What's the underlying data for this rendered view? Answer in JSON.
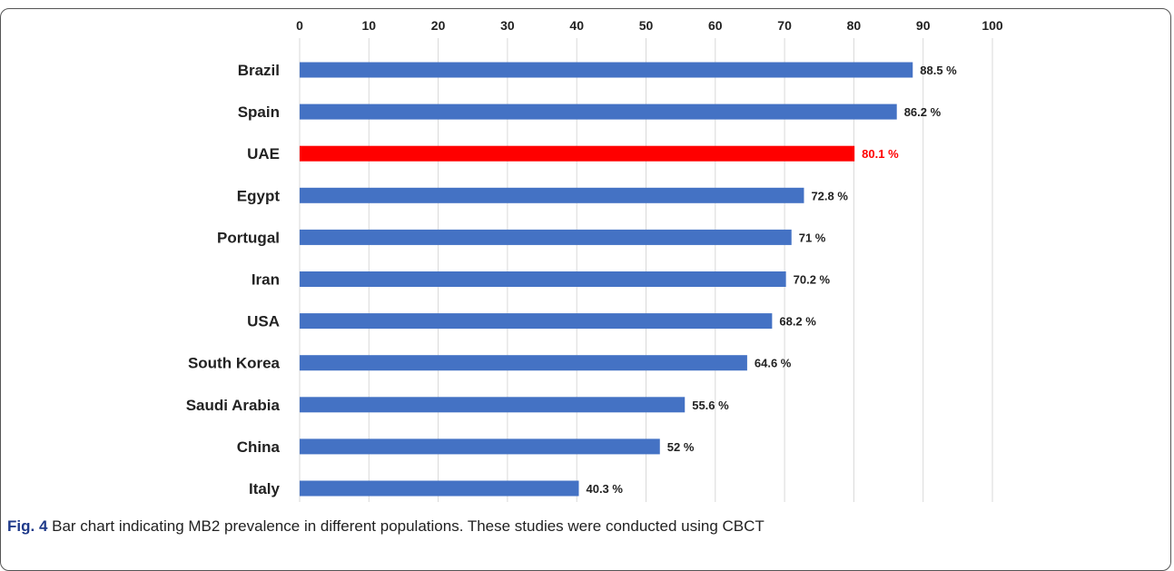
{
  "chart_data": {
    "type": "bar",
    "orientation": "horizontal",
    "x_ticks": [
      "0",
      "10",
      "20",
      "30",
      "40",
      "50",
      "60",
      "70",
      "80",
      "90",
      "100"
    ],
    "xlim": [
      0,
      100
    ],
    "grid": "vertical",
    "axis_position": "top",
    "categories": [
      "Brazil",
      "Spain",
      "UAE",
      "Egypt",
      "Portugal",
      "Iran",
      "USA",
      "South Korea",
      "Saudi Arabia",
      "China",
      "Italy"
    ],
    "values": [
      88.5,
      86.2,
      80.1,
      72.8,
      71,
      70.2,
      68.2,
      64.6,
      55.6,
      52,
      40.3
    ],
    "value_labels": [
      "88.5",
      "86.2",
      "80.1",
      "72.8",
      "71",
      "70.2",
      "68.2",
      "64.6",
      "55.6",
      "52",
      "40.3"
    ],
    "unit_symbol": "%",
    "highlight_category": "UAE",
    "colors": {
      "bar": "#4472c4",
      "highlight": "#ff0000",
      "grid": "#d9d9d9",
      "text": "#222222"
    }
  },
  "caption": {
    "label": "Fig. 4",
    "text": " Bar chart indicating MB2 prevalence in different populations. These studies were conducted using CBCT"
  }
}
